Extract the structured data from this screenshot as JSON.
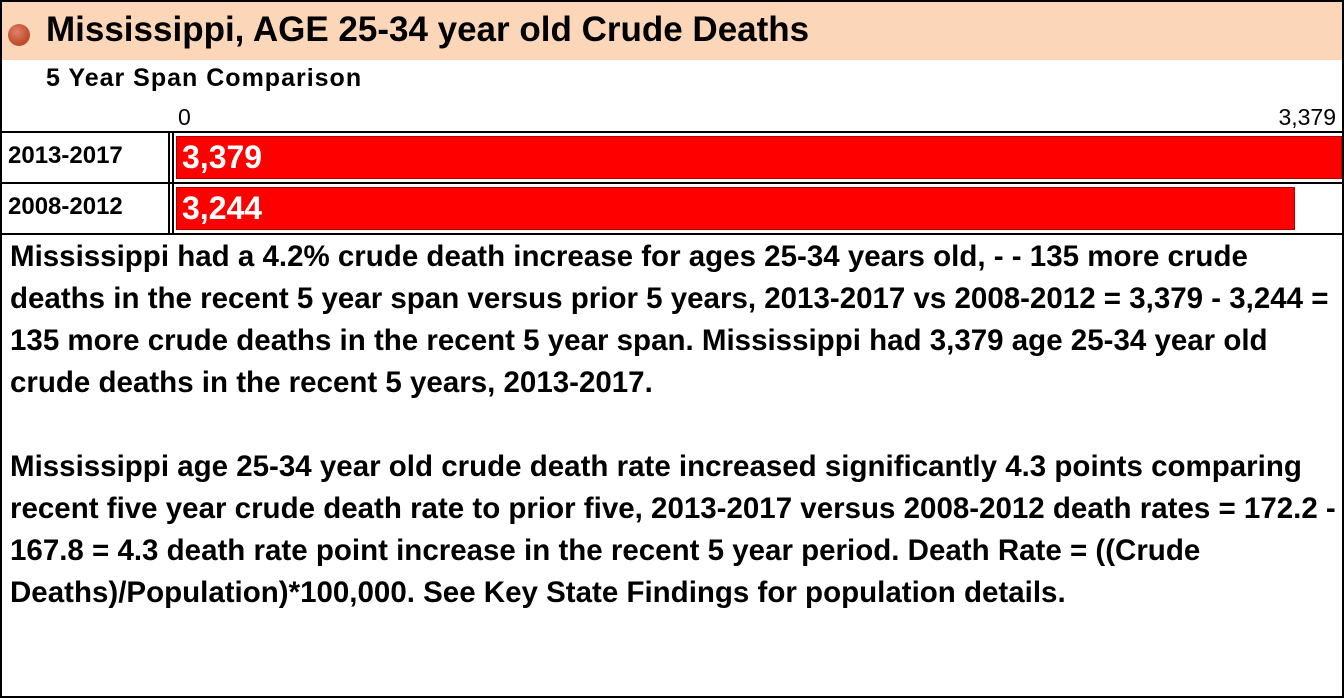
{
  "header": {
    "title": "Mississippi, AGE 25-34 year old Crude Deaths",
    "subtitle": "5 Year Span Comparison"
  },
  "colors": {
    "header_bg": "#fbd6b8",
    "bar": "#ff0000",
    "bullet": "#c0502f"
  },
  "chart_data": {
    "type": "bar",
    "orientation": "horizontal",
    "categories": [
      "2013-2017",
      "2008-2012"
    ],
    "values": [
      3379,
      3244
    ],
    "value_labels": [
      "3,379",
      "3,244"
    ],
    "xlim": [
      0,
      3379
    ],
    "tick_labels": [
      "0",
      "3,379"
    ],
    "title": "Mississippi, AGE 25-34 year old Crude Deaths",
    "subtitle": "5 Year Span Comparison",
    "grid": false,
    "legend": "none"
  },
  "summary": {
    "paragraph1": "Mississippi had a 4.2% crude death increase for ages 25-34 years old,  - -  135 more crude deaths in the recent 5 year span versus prior 5 years, 2013-2017 vs 2008-2012 = 3,379 - 3,244 = 135 more crude deaths in the recent 5 year span.  Mississippi had 3,379 age 25-34 year old crude deaths in the recent 5 years, 2013-2017.",
    "paragraph2": "Mississippi age 25-34 year old crude death rate increased significantly 4.3 points comparing recent five year crude death rate  to prior five, 2013-2017 versus 2008-2012 death rates = 172.2 - 167.8 = 4.3 death rate point increase in the recent 5 year period.  Death Rate = ((Crude Deaths)/Population)*100,000. See Key State Findings for population details."
  }
}
